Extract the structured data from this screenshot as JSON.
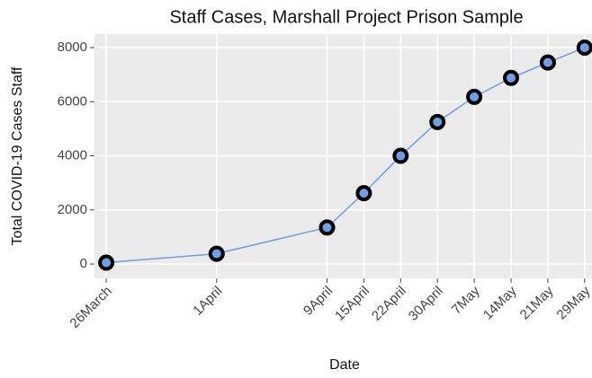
{
  "chart_data": {
    "type": "line",
    "title": "Staff Cases, Marshall Project Prison Sample",
    "x_label": "Date",
    "y_label": "Total COVID-19 Cases Staff",
    "x": [
      0,
      3,
      6,
      7,
      8,
      9,
      10,
      11,
      12,
      13
    ],
    "values": [
      50,
      380,
      1350,
      2620,
      4000,
      5250,
      6180,
      6880,
      7450,
      8000
    ],
    "color": "#6f9ee8",
    "marker_edge_color": "#000000",
    "xlim": [
      -0.32,
      13.2
    ],
    "xticks": [
      {
        "value": 0,
        "label": "26March"
      },
      {
        "value": 3,
        "label": "1April"
      },
      {
        "value": 6,
        "label": "9April"
      },
      {
        "value": 7,
        "label": "15April"
      },
      {
        "value": 8,
        "label": "22April"
      },
      {
        "value": 9,
        "label": "30April"
      },
      {
        "value": 10,
        "label": "7May"
      },
      {
        "value": 11,
        "label": "14May"
      },
      {
        "value": 12,
        "label": "21May"
      },
      {
        "value": 13,
        "label": "29May"
      }
    ],
    "ylim": [
      -530,
      8500
    ],
    "yticks": [
      0,
      2000,
      4000,
      6000,
      8000
    ],
    "grid": true
  }
}
